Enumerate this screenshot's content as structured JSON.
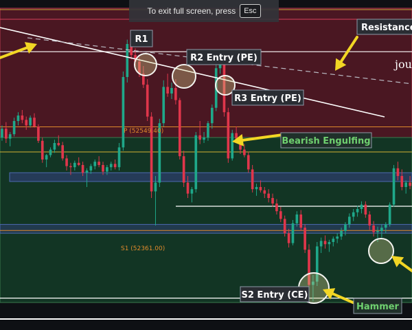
{
  "banner": {
    "text": "To exit full screen, press",
    "key": "Esc"
  },
  "colors": {
    "background": "#0e1014",
    "resistance_zone": "#4a1722",
    "support_zone": "#123524",
    "bull": "#1fa88a",
    "bear": "#e0364b",
    "arrow": "#f2d624",
    "pivot": "#e08a2c",
    "trend": "#ffffff"
  },
  "chart_data": {
    "type": "candlestick",
    "title": "",
    "xlabel": "",
    "ylabel": "",
    "ylim": [
      52180,
      52780
    ],
    "grid": false,
    "pivots": [
      {
        "name": "P",
        "label": "P (52549.40)",
        "value": 52549.4
      },
      {
        "name": "S1",
        "label": "S1 (52361.00)",
        "value": 52361.0
      }
    ],
    "zones": [
      {
        "name": "resistance",
        "from": 52530,
        "to": 52765
      },
      {
        "name": "support",
        "from": 52230,
        "to": 52530
      },
      {
        "name": "band",
        "from": 52450,
        "to": 52466
      },
      {
        "name": "s1-band",
        "from": 52356,
        "to": 52372
      }
    ],
    "levels": [
      52686,
      52405,
      52238,
      52200
    ],
    "trendline": {
      "from": [
        0,
        52742
      ],
      "to": [
        120,
        52608
      ]
    },
    "candles": [
      [
        52530,
        52552,
        52524,
        52546
      ],
      [
        52546,
        52558,
        52520,
        52528
      ],
      [
        52528,
        52540,
        52514,
        52536
      ],
      [
        52536,
        52566,
        52532,
        52560
      ],
      [
        52560,
        52576,
        52552,
        52570
      ],
      [
        52570,
        52580,
        52556,
        52562
      ],
      [
        52562,
        52568,
        52544,
        52552
      ],
      [
        52552,
        52570,
        52548,
        52566
      ],
      [
        52566,
        52574,
        52548,
        52550
      ],
      [
        52550,
        52554,
        52520,
        52524
      ],
      [
        52524,
        52530,
        52484,
        52490
      ],
      [
        52490,
        52500,
        52476,
        52498
      ],
      [
        52498,
        52512,
        52494,
        52508
      ],
      [
        52508,
        52526,
        52502,
        52520
      ],
      [
        52520,
        52534,
        52514,
        52516
      ],
      [
        52516,
        52522,
        52488,
        52492
      ],
      [
        52492,
        52498,
        52470,
        52478
      ],
      [
        52478,
        52484,
        52462,
        52476
      ],
      [
        52476,
        52488,
        52470,
        52484
      ],
      [
        52484,
        52494,
        52478,
        52480
      ],
      [
        52480,
        52486,
        52460,
        52466
      ],
      [
        52466,
        52474,
        52440,
        52470
      ],
      [
        52470,
        52482,
        52464,
        52478
      ],
      [
        52478,
        52490,
        52472,
        52486
      ],
      [
        52486,
        52496,
        52476,
        52480
      ],
      [
        52480,
        52486,
        52462,
        52468
      ],
      [
        52468,
        52480,
        52462,
        52476
      ],
      [
        52476,
        52486,
        52470,
        52482
      ],
      [
        52482,
        52490,
        52472,
        52476
      ],
      [
        52476,
        52520,
        52470,
        52512
      ],
      [
        52512,
        52650,
        52506,
        52640
      ],
      [
        52640,
        52708,
        52630,
        52700
      ],
      [
        52700,
        52714,
        52672,
        52680
      ],
      [
        52680,
        52692,
        52660,
        52668
      ],
      [
        52668,
        52676,
        52640,
        52646
      ],
      [
        52646,
        52660,
        52620,
        52626
      ],
      [
        52626,
        52636,
        52560,
        52568
      ],
      [
        52568,
        52576,
        52420,
        52432
      ],
      [
        52432,
        52460,
        52370,
        52448
      ],
      [
        52448,
        52564,
        52440,
        52556
      ],
      [
        52556,
        52634,
        52550,
        52622
      ],
      [
        52622,
        52646,
        52604,
        52610
      ],
      [
        52610,
        52630,
        52600,
        52620
      ],
      [
        52620,
        52636,
        52590,
        52598
      ],
      [
        52598,
        52602,
        52490,
        52496
      ],
      [
        52496,
        52506,
        52440,
        52448
      ],
      [
        52448,
        52460,
        52420,
        52428
      ],
      [
        52428,
        52440,
        52412,
        52436
      ],
      [
        52436,
        52540,
        52430,
        52534
      ],
      [
        52534,
        52560,
        52518,
        52526
      ],
      [
        52526,
        52540,
        52520,
        52530
      ],
      [
        52530,
        52560,
        52524,
        52556
      ],
      [
        52556,
        52590,
        52546,
        52584
      ],
      [
        52584,
        52664,
        52578,
        52656
      ],
      [
        52656,
        52676,
        52646,
        52666
      ],
      [
        52666,
        52676,
        52568,
        52576
      ],
      [
        52576,
        52584,
        52484,
        52492
      ],
      [
        52492,
        52544,
        52488,
        52538
      ],
      [
        52538,
        52550,
        52520,
        52528
      ],
      [
        52528,
        52534,
        52500,
        52508
      ],
      [
        52508,
        52518,
        52494,
        52498
      ],
      [
        52498,
        52504,
        52466,
        52472
      ],
      [
        52472,
        52480,
        52430,
        52436
      ],
      [
        52436,
        52446,
        52424,
        52440
      ],
      [
        52440,
        52452,
        52430,
        52434
      ],
      [
        52434,
        52440,
        52420,
        52428
      ],
      [
        52428,
        52436,
        52412,
        52420
      ],
      [
        52420,
        52428,
        52404,
        52410
      ],
      [
        52410,
        52418,
        52390,
        52396
      ],
      [
        52396,
        52404,
        52376,
        52382
      ],
      [
        52382,
        52388,
        52350,
        52356
      ],
      [
        52356,
        52364,
        52330,
        52338
      ],
      [
        52338,
        52380,
        52334,
        52374
      ],
      [
        52374,
        52396,
        52368,
        52390
      ],
      [
        52390,
        52398,
        52360,
        52366
      ],
      [
        52366,
        52372,
        52320,
        52326
      ],
      [
        52326,
        52336,
        52250,
        52262
      ],
      [
        52262,
        52280,
        52232,
        52268
      ],
      [
        52268,
        52340,
        52260,
        52332
      ],
      [
        52332,
        52348,
        52320,
        52342
      ],
      [
        52342,
        52352,
        52328,
        52336
      ],
      [
        52336,
        52344,
        52322,
        52340
      ],
      [
        52340,
        52350,
        52332,
        52346
      ],
      [
        52346,
        52356,
        52338,
        52350
      ],
      [
        52350,
        52366,
        52344,
        52360
      ],
      [
        52360,
        52376,
        52352,
        52372
      ],
      [
        52372,
        52392,
        52366,
        52386
      ],
      [
        52386,
        52400,
        52378,
        52394
      ],
      [
        52394,
        52406,
        52386,
        52400
      ],
      [
        52400,
        52414,
        52392,
        52408
      ],
      [
        52408,
        52414,
        52384,
        52390
      ],
      [
        52390,
        52396,
        52362,
        52370
      ],
      [
        52370,
        52378,
        52350,
        52358
      ],
      [
        52358,
        52368,
        52340,
        52360
      ],
      [
        52360,
        52372,
        52348,
        52366
      ],
      [
        52366,
        52376,
        52356,
        52372
      ],
      [
        52372,
        52412,
        52368,
        52408
      ],
      [
        52408,
        52480,
        52404,
        52474
      ],
      [
        52474,
        52486,
        52452,
        52460
      ],
      [
        52460,
        52472,
        52434,
        52440
      ],
      [
        52440,
        52452,
        52428,
        52448
      ],
      [
        52448,
        52460,
        52436,
        52442
      ]
    ],
    "annotations": [
      {
        "name": "r1-label",
        "text": "R1"
      },
      {
        "name": "r2-entry-label",
        "text": "R2 Entry (PE)"
      },
      {
        "name": "r3-entry-label",
        "text": "R3 Entry (PE)"
      },
      {
        "name": "resistance-label",
        "text": "Resistance"
      },
      {
        "name": "bearish-engulfing-label",
        "text": "Bearish Engulfing"
      },
      {
        "name": "s2-entry-label",
        "text": "S2 Entry (CE)"
      },
      {
        "name": "hammer-label",
        "text": "Hammer"
      },
      {
        "name": "watermark-text",
        "text": "jou"
      }
    ]
  }
}
